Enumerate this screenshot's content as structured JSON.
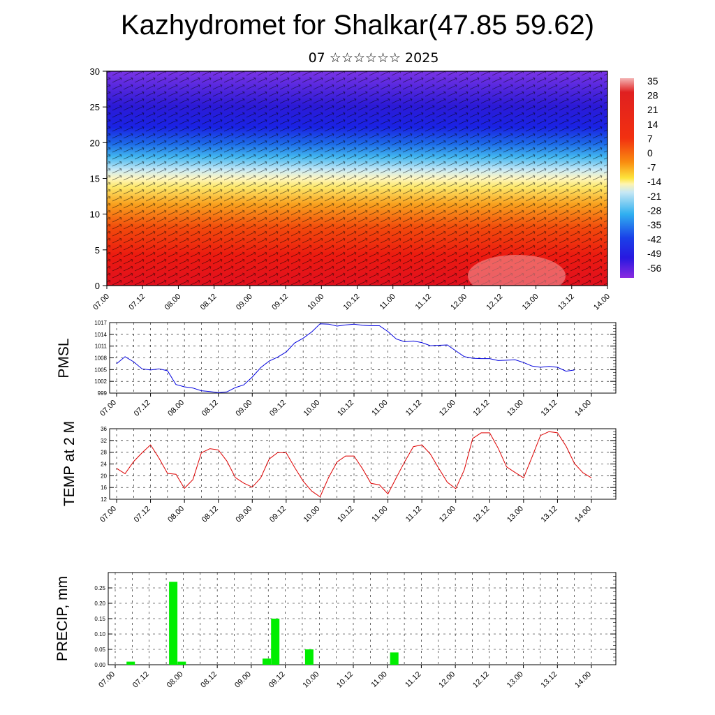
{
  "title": "Kazhydromet for Shalkar(47.85 59.62)",
  "subtitle": "07 ☆☆☆☆☆☆ 2025",
  "time_labels": [
    "07.00",
    "07.12",
    "08.00",
    "08.12",
    "09.00",
    "09.12",
    "10.00",
    "10.12",
    "11.00",
    "11.12",
    "12.00",
    "12.12",
    "13.00",
    "13.12",
    "14.00"
  ],
  "colors": {
    "pmsl_line": "#0000dd",
    "temp_line": "#dd0000",
    "precip_bar": "#00ee00",
    "frame": "#000000"
  },
  "chart_data": [
    {
      "type": "heatmap",
      "name": "cross-section",
      "ylim": [
        0,
        30
      ],
      "yticks": [
        0,
        5,
        10,
        15,
        20,
        25,
        30
      ],
      "x": [
        "07.00",
        "07.12",
        "08.00",
        "08.12",
        "09.00",
        "09.12",
        "10.00",
        "10.12",
        "11.00",
        "11.12",
        "12.00",
        "12.12",
        "13.00",
        "13.12",
        "14.00"
      ],
      "colorbar_labels": [
        "35",
        "28",
        "21",
        "14",
        "7",
        "0",
        "-7",
        "-14",
        "-21",
        "-28",
        "-35",
        "-42",
        "-49",
        "-56"
      ],
      "colorbar_values": [
        35,
        28,
        21,
        14,
        7,
        0,
        -7,
        -14,
        -21,
        -28,
        -35,
        -42,
        -49,
        -56
      ]
    },
    {
      "type": "line",
      "ylabel": "PMSL",
      "ylim": [
        999,
        1017
      ],
      "yticks": [
        999,
        1002,
        1005,
        1008,
        1011,
        1014,
        1017
      ],
      "x_step_hours": 3,
      "values": [
        1006.5,
        1008.3,
        1007.0,
        1005.2,
        1004.9,
        1005.2,
        1004.7,
        1001.2,
        1000.6,
        1000.3,
        999.6,
        999.4,
        999.1,
        999.3,
        1000.4,
        1001.1,
        1003.1,
        1005.5,
        1007.2,
        1008.2,
        1009.5,
        1011.8,
        1013.0,
        1014.6,
        1016.7,
        1016.6,
        1016.1,
        1016.4,
        1016.6,
        1016.3,
        1016.2,
        1016.2,
        1014.7,
        1012.8,
        1012.1,
        1012.3,
        1011.9,
        1011.1,
        1011.2,
        1011.3,
        1009.8,
        1008.3,
        1007.9,
        1007.8,
        1007.8,
        1007.3,
        1007.4,
        1007.5,
        1006.8,
        1005.9,
        1005.6,
        1005.8,
        1005.6,
        1004.6,
        1004.9
      ]
    },
    {
      "type": "line",
      "ylabel": "TEMP at 2 M",
      "ylim": [
        12,
        36
      ],
      "yticks": [
        12,
        16,
        20,
        24,
        28,
        32,
        36
      ],
      "x_step_hours": 3,
      "values": [
        22.5,
        20.7,
        24.8,
        27.8,
        30.5,
        26.0,
        20.8,
        20.5,
        15.7,
        18.7,
        27.8,
        29.2,
        28.8,
        25.0,
        19.4,
        17.5,
        16.1,
        19.3,
        25.7,
        27.9,
        27.8,
        22.8,
        18.2,
        14.8,
        12.8,
        19.4,
        24.7,
        26.7,
        26.7,
        22.4,
        17.4,
        16.9,
        13.8,
        19.4,
        24.9,
        29.9,
        30.5,
        27.4,
        22.5,
        17.8,
        15.6,
        22.0,
        32.7,
        34.6,
        34.6,
        29.4,
        23.0,
        21.1,
        19.3,
        26.4,
        33.7,
        35.0,
        34.6,
        30.1,
        24.2,
        21.0,
        19.3
      ]
    },
    {
      "type": "bar",
      "ylabel": "PRECIP, mm",
      "ylim": [
        0,
        0.3
      ],
      "yticks": [
        "0.00",
        "0.05",
        "0.10",
        "0.15",
        "0.20",
        "0.25"
      ],
      "x_step_hours": 3,
      "bars": [
        {
          "index": 1,
          "value": 0.01
        },
        {
          "index": 6,
          "value": 0.27
        },
        {
          "index": 7,
          "value": 0.01
        },
        {
          "index": 17,
          "value": 0.02
        },
        {
          "index": 18,
          "value": 0.15
        },
        {
          "index": 22,
          "value": 0.05
        },
        {
          "index": 32,
          "value": 0.04
        }
      ]
    }
  ]
}
